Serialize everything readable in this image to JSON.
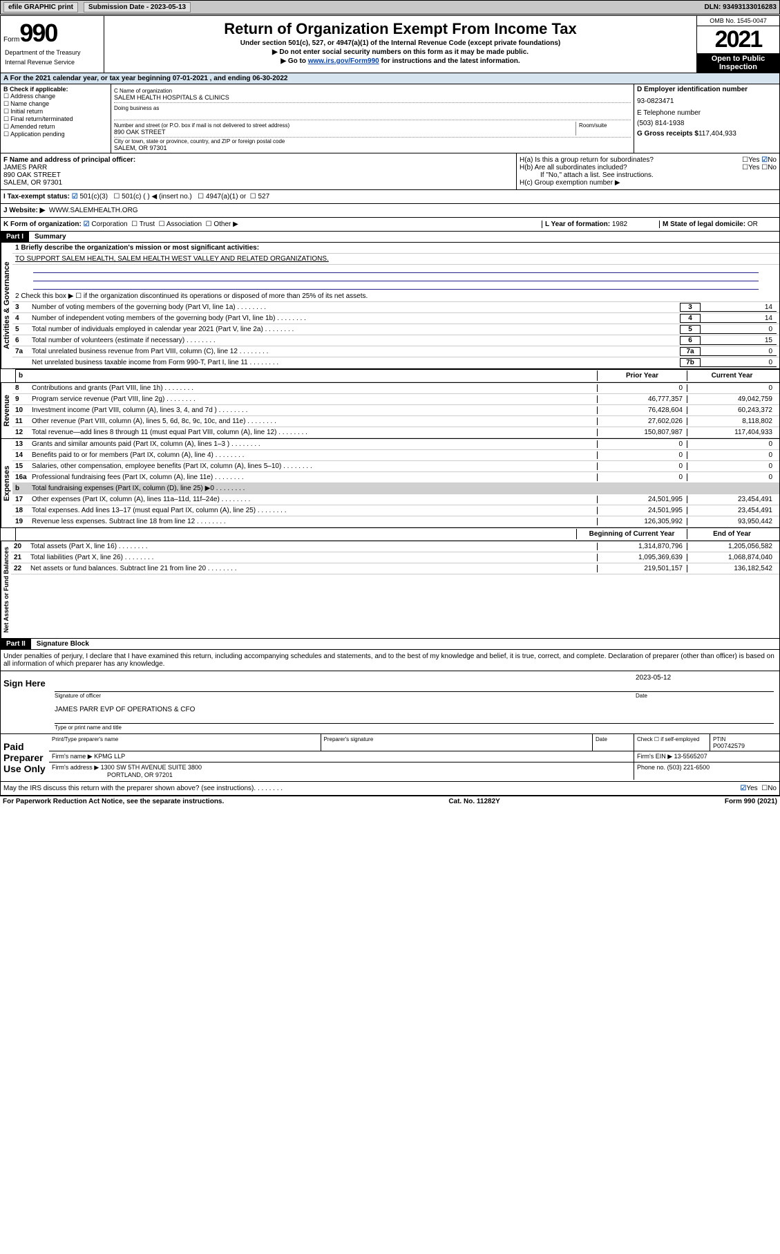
{
  "toolbar": {
    "efile": "efile GRAPHIC print",
    "subdate_lbl": "Submission Date - 2023-05-13",
    "dln": "DLN: 93493133016283"
  },
  "header": {
    "form_lbl": "Form",
    "form_num": "990",
    "title": "Return of Organization Exempt From Income Tax",
    "sub1": "Under section 501(c), 527, or 4947(a)(1) of the Internal Revenue Code (except private foundations)",
    "sub2": "▶ Do not enter social security numbers on this form as it may be made public.",
    "sub3a": "▶ Go to ",
    "sub3_link": "www.irs.gov/Form990",
    "sub3b": " for instructions and the latest information.",
    "omb": "OMB No. 1545-0047",
    "year": "2021",
    "inspect1": "Open to Public",
    "inspect2": "Inspection",
    "dept": "Department of the Treasury",
    "irs": "Internal Revenue Service"
  },
  "a_line": "A For the 2021 calendar year, or tax year beginning 07-01-2021   , and ending 06-30-2022",
  "box_b": {
    "title": "B Check if applicable:",
    "opts": [
      "Address change",
      "Name change",
      "Initial return",
      "Final return/terminated",
      "Amended return",
      "Application pending"
    ]
  },
  "box_c": {
    "name_lbl": "C Name of organization",
    "name": "SALEM HEALTH HOSPITALS & CLINICS",
    "dba_lbl": "Doing business as",
    "addr_lbl": "Number and street (or P.O. box if mail is not delivered to street address)",
    "room_lbl": "Room/suite",
    "addr": "890 OAK STREET",
    "city_lbl": "City or town, state or province, country, and ZIP or foreign postal code",
    "city": "SALEM, OR  97301"
  },
  "box_d": {
    "ein_lbl": "D Employer identification number",
    "ein": "93-0823471",
    "phone_lbl": "E Telephone number",
    "phone": "(503) 814-1938",
    "gross_lbl": "G Gross receipts $",
    "gross": "117,404,933"
  },
  "box_f": {
    "lbl": "F Name and address of principal officer:",
    "name": "JAMES PARR",
    "addr1": "890 OAK STREET",
    "addr2": "SALEM, OR  97301"
  },
  "box_h": {
    "a": "H(a)  Is this a group return for subordinates?",
    "a_yes": "Yes",
    "a_no": "No",
    "b": "H(b)  Are all subordinates included?",
    "b_yes": "Yes",
    "b_no": "No",
    "b_note": "If \"No,\" attach a list. See instructions.",
    "c": "H(c)  Group exemption number ▶"
  },
  "tax_status": {
    "i": "I   Tax-exempt status:",
    "c3": "501(c)(3)",
    "c": "501(c) (  ) ◀ (insert no.)",
    "a1": "4947(a)(1) or",
    "527": "527"
  },
  "website": {
    "lbl": "J   Website: ▶",
    "val": "WWW.SALEMHEALTH.ORG"
  },
  "box_k": {
    "lbl": "K Form of organization:",
    "corp": "Corporation",
    "trust": "Trust",
    "assoc": "Association",
    "other": "Other ▶"
  },
  "box_l": {
    "lbl": "L Year of formation:",
    "val": "1982"
  },
  "box_m": {
    "lbl": "M State of legal domicile:",
    "val": "OR"
  },
  "part1": {
    "hdr": "Part I",
    "title": "Summary",
    "l1": "1  Briefly describe the organization's mission or most significant activities:",
    "l1_val": "TO SUPPORT SALEM HEALTH, SALEM HEALTH WEST VALLEY AND RELATED ORGANIZATIONS.",
    "l2": "2   Check this box ▶ ☐  if the organization discontinued its operations or disposed of more than 25% of its net assets.",
    "rows_ag": [
      {
        "n": "3",
        "d": "Number of voting members of the governing body (Part VI, line 1a)",
        "b": "3",
        "v": "14"
      },
      {
        "n": "4",
        "d": "Number of independent voting members of the governing body (Part VI, line 1b)",
        "b": "4",
        "v": "14"
      },
      {
        "n": "5",
        "d": "Total number of individuals employed in calendar year 2021 (Part V, line 2a)",
        "b": "5",
        "v": "0"
      },
      {
        "n": "6",
        "d": "Total number of volunteers (estimate if necessary)",
        "b": "6",
        "v": "15"
      },
      {
        "n": "7a",
        "d": "Total unrelated business revenue from Part VIII, column (C), line 12",
        "b": "7a",
        "v": "0"
      },
      {
        "n": "",
        "d": "Net unrelated business taxable income from Form 990-T, Part I, line 11",
        "b": "7b",
        "v": "0"
      }
    ],
    "prior_hdr": "Prior Year",
    "curr_hdr": "Current Year",
    "rows_rev": [
      {
        "n": "8",
        "d": "Contributions and grants (Part VIII, line 1h)",
        "p": "0",
        "c": "0"
      },
      {
        "n": "9",
        "d": "Program service revenue (Part VIII, line 2g)",
        "p": "46,777,357",
        "c": "49,042,759"
      },
      {
        "n": "10",
        "d": "Investment income (Part VIII, column (A), lines 3, 4, and 7d )",
        "p": "76,428,604",
        "c": "60,243,372"
      },
      {
        "n": "11",
        "d": "Other revenue (Part VIII, column (A), lines 5, 6d, 8c, 9c, 10c, and 11e)",
        "p": "27,602,026",
        "c": "8,118,802"
      },
      {
        "n": "12",
        "d": "Total revenue—add lines 8 through 11 (must equal Part VIII, column (A), line 12)",
        "p": "150,807,987",
        "c": "117,404,933"
      }
    ],
    "rows_exp": [
      {
        "n": "13",
        "d": "Grants and similar amounts paid (Part IX, column (A), lines 1–3 )",
        "p": "0",
        "c": "0"
      },
      {
        "n": "14",
        "d": "Benefits paid to or for members (Part IX, column (A), line 4)",
        "p": "0",
        "c": "0"
      },
      {
        "n": "15",
        "d": "Salaries, other compensation, employee benefits (Part IX, column (A), lines 5–10)",
        "p": "0",
        "c": "0"
      },
      {
        "n": "16a",
        "d": "Professional fundraising fees (Part IX, column (A), line 11e)",
        "p": "0",
        "c": "0"
      },
      {
        "n": "b",
        "d": "Total fundraising expenses (Part IX, column (D), line 25) ▶0",
        "p": "",
        "c": "",
        "dark": true
      },
      {
        "n": "17",
        "d": "Other expenses (Part IX, column (A), lines 11a–11d, 11f–24e)",
        "p": "24,501,995",
        "c": "23,454,491"
      },
      {
        "n": "18",
        "d": "Total expenses. Add lines 13–17 (must equal Part IX, column (A), line 25)",
        "p": "24,501,995",
        "c": "23,454,491"
      },
      {
        "n": "19",
        "d": "Revenue less expenses. Subtract line 18 from line 12",
        "p": "126,305,992",
        "c": "93,950,442"
      }
    ],
    "beg_hdr": "Beginning of Current Year",
    "end_hdr": "End of Year",
    "rows_net": [
      {
        "n": "20",
        "d": "Total assets (Part X, line 16)",
        "p": "1,314,870,796",
        "c": "1,205,056,582"
      },
      {
        "n": "21",
        "d": "Total liabilities (Part X, line 26)",
        "p": "1,095,369,639",
        "c": "1,068,874,040"
      },
      {
        "n": "22",
        "d": "Net assets or fund balances. Subtract line 21 from line 20",
        "p": "219,501,157",
        "c": "136,182,542"
      }
    ],
    "sec_ag": "Activities & Governance",
    "sec_rev": "Revenue",
    "sec_exp": "Expenses",
    "sec_net": "Net Assets or Fund Balances"
  },
  "part2": {
    "hdr": "Part II",
    "title": "Signature Block",
    "decl": "Under penalties of perjury, I declare that I have examined this return, including accompanying schedules and statements, and to the best of my knowledge and belief, it is true, correct, and complete. Declaration of preparer (other than officer) is based on all information of which preparer has any knowledge.",
    "sign_here": "Sign Here",
    "sig_officer": "Signature of officer",
    "date": "Date",
    "sig_date": "2023-05-12",
    "officer_name": "JAMES PARR EVP OF OPERATIONS & CFO",
    "type_name": "Type or print name and title",
    "paid": "Paid Preparer Use Only",
    "prep_name_lbl": "Print/Type preparer's name",
    "prep_sig_lbl": "Preparer's signature",
    "prep_date_lbl": "Date",
    "check_self": "Check ☐ if self-employed",
    "ptin_lbl": "PTIN",
    "ptin": "P00742579",
    "firm_name_lbl": "Firm's name   ▶",
    "firm_name": "KPMG LLP",
    "firm_ein_lbl": "Firm's EIN ▶",
    "firm_ein": "13-5565207",
    "firm_addr_lbl": "Firm's address ▶",
    "firm_addr1": "1300 SW 5TH AVENUE SUITE 3800",
    "firm_addr2": "PORTLAND, OR  97201",
    "firm_phone_lbl": "Phone no.",
    "firm_phone": "(503) 221-6500",
    "discuss": "May the IRS discuss this return with the preparer shown above? (see instructions)",
    "discuss_yes": "Yes",
    "discuss_no": "No"
  },
  "footer": {
    "left": "For Paperwork Reduction Act Notice, see the separate instructions.",
    "mid": "Cat. No. 11282Y",
    "right": "Form 990 (2021)"
  }
}
